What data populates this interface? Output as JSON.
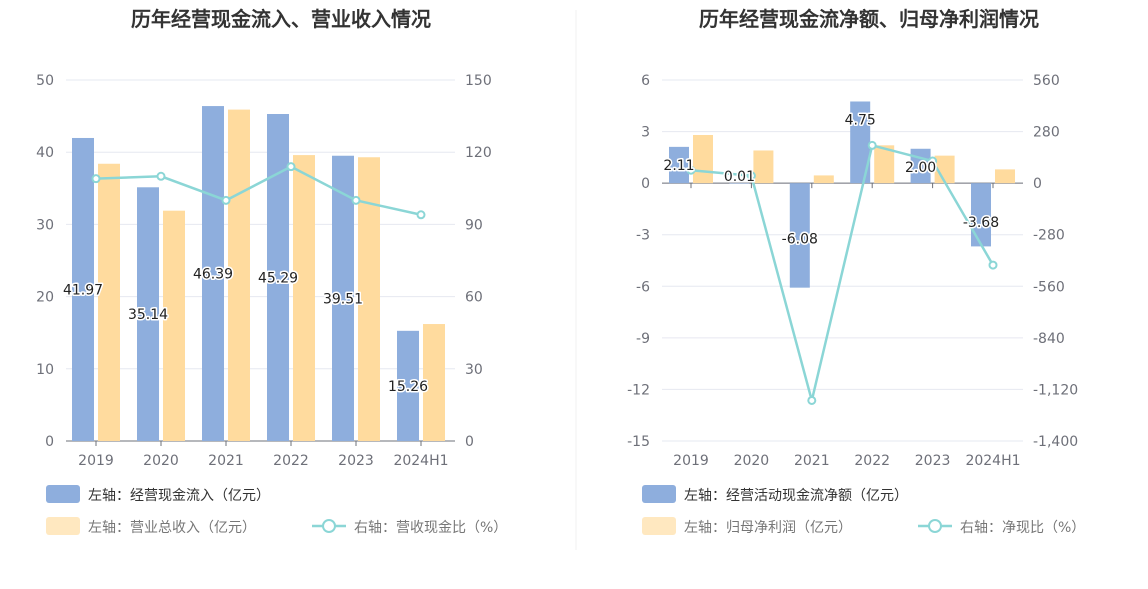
{
  "colors": {
    "bar_blue": "#8eaedd",
    "bar_orange": "#ffdb9e",
    "line": "#8bd6d6",
    "grid": "#e6e8f0",
    "axis": "#6e7079"
  },
  "chart_data": [
    {
      "type": "bar",
      "title": "历年经营现金流入、营业收入情况",
      "categories": [
        "2019",
        "2020",
        "2021",
        "2022",
        "2023",
        "2024H1"
      ],
      "left_axis": {
        "min": 0,
        "max": 50,
        "ticks": [
          "0",
          "10",
          "20",
          "30",
          "40",
          "50"
        ]
      },
      "right_axis": {
        "min": 0,
        "max": 150,
        "ticks": [
          "0",
          "30",
          "60",
          "90",
          "120",
          "150"
        ]
      },
      "series": [
        {
          "name": "左轴：经营现金流入（亿元）",
          "kind": "bar",
          "axis": "left",
          "values": [
            41.97,
            35.14,
            46.39,
            45.29,
            39.51,
            15.26
          ],
          "labels": [
            "41.97",
            "35.14",
            "46.39",
            "45.29",
            "39.51",
            "15.26"
          ]
        },
        {
          "name": "左轴：营业总收入（亿元）",
          "kind": "bar",
          "axis": "left",
          "values": [
            38.4,
            31.9,
            45.9,
            39.6,
            39.3,
            16.2
          ]
        },
        {
          "name": "右轴：营收现金比（%）",
          "kind": "line",
          "axis": "right",
          "values": [
            109,
            110,
            100,
            114,
            100,
            94
          ]
        }
      ]
    },
    {
      "type": "bar",
      "title": "历年经营现金流净额、归母净利润情况",
      "categories": [
        "2019",
        "2020",
        "2021",
        "2022",
        "2023",
        "2024H1"
      ],
      "left_axis": {
        "min": -15,
        "max": 6,
        "ticks": [
          "-15",
          "-12",
          "-9",
          "-6",
          "-3",
          "0",
          "3",
          "6"
        ]
      },
      "right_axis": {
        "min": -1400,
        "max": 560,
        "ticks": [
          "-1,400",
          "-1,120",
          "-840",
          "-560",
          "-280",
          "0",
          "280",
          "560"
        ]
      },
      "series": [
        {
          "name": "左轴：经营活动现金流净额（亿元）",
          "kind": "bar",
          "axis": "left",
          "values": [
            2.11,
            0.01,
            -6.08,
            4.75,
            2.0,
            -3.68
          ],
          "labels": [
            "2.11",
            "0.01",
            "-6.08",
            "4.75",
            "2.00",
            "-3.68"
          ]
        },
        {
          "name": "左轴：归母净利润（亿元）",
          "kind": "bar",
          "axis": "left",
          "values": [
            2.8,
            1.9,
            0.45,
            2.2,
            1.6,
            0.8
          ]
        },
        {
          "name": "右轴：净现比（%）",
          "kind": "line",
          "axis": "right",
          "values": [
            70,
            40,
            -1180,
            205,
            120,
            -445
          ]
        }
      ]
    }
  ]
}
